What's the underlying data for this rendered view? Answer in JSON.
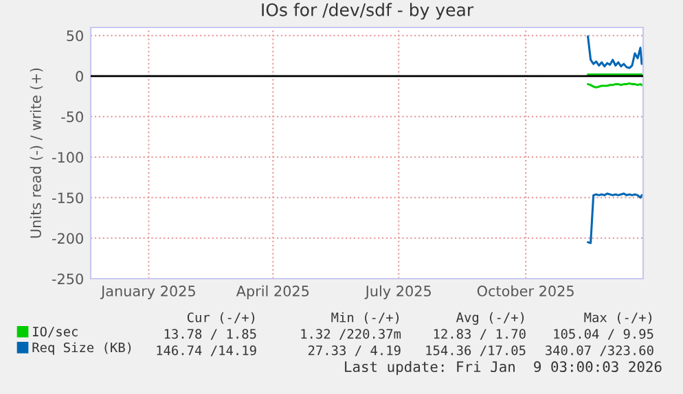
{
  "chart_data": {
    "type": "line",
    "title": "IOs for /dev/sdf - by year",
    "ylabel": "Units read (-) / write (+)",
    "xlim": [
      "2024-12-05",
      "2026-01-09"
    ],
    "xticks": [
      {
        "value": "2025-01-16",
        "label": "January 2025"
      },
      {
        "value": "2025-04-16",
        "label": "April 2025"
      },
      {
        "value": "2025-07-16",
        "label": "July 2025"
      },
      {
        "value": "2025-10-16",
        "label": "October 2025"
      }
    ],
    "ylim": [
      -250,
      60
    ],
    "yticks": [
      -250,
      -200,
      -150,
      -100,
      -50,
      0,
      50
    ],
    "grid": true,
    "legend": "bottom left",
    "ref_lines": [
      {
        "axis": "y",
        "value": 0,
        "color": "#000000"
      }
    ],
    "series": [
      {
        "name": "IO/sec",
        "color": "#00cc00",
        "x": [
          "2025-11-30",
          "2025-12-02",
          "2025-12-04",
          "2025-12-06",
          "2025-12-08",
          "2025-12-10",
          "2025-12-12",
          "2025-12-14",
          "2025-12-16",
          "2025-12-18",
          "2025-12-20",
          "2025-12-22",
          "2025-12-24",
          "2025-12-26",
          "2025-12-28",
          "2025-12-30",
          "2026-01-01",
          "2026-01-03",
          "2026-01-05",
          "2026-01-07",
          "2026-01-08"
        ],
        "values": [
          -10,
          -11,
          -13,
          -14,
          -13,
          -12,
          -12,
          -12,
          -11,
          -11,
          -10,
          -10,
          -11,
          -10,
          -10,
          -9,
          -10,
          -10,
          -11,
          -10,
          -11
        ]
      },
      {
        "color": "#00cc00",
        "x": [
          "2025-11-30",
          "2025-12-02",
          "2025-12-04",
          "2025-12-06",
          "2025-12-08",
          "2025-12-10",
          "2025-12-12",
          "2025-12-14",
          "2025-12-16",
          "2025-12-18",
          "2025-12-20",
          "2025-12-22",
          "2025-12-24",
          "2025-12-26",
          "2025-12-28",
          "2025-12-30",
          "2026-01-01",
          "2026-01-03",
          "2026-01-05",
          "2026-01-07",
          "2026-01-08"
        ],
        "values": [
          2,
          2,
          2,
          2,
          2,
          2,
          2,
          2,
          2,
          2,
          2,
          2,
          2,
          2,
          2,
          2,
          2,
          2,
          2,
          2,
          2
        ]
      },
      {
        "name": "Req Size (KB)",
        "color": "#0066b3",
        "x": [
          "2025-11-30",
          "2025-12-02",
          "2025-12-04",
          "2025-12-06",
          "2025-12-08",
          "2025-12-10",
          "2025-12-12",
          "2025-12-14",
          "2025-12-16",
          "2025-12-18",
          "2025-12-20",
          "2025-12-22",
          "2025-12-24",
          "2025-12-26",
          "2025-12-28",
          "2025-12-30",
          "2026-01-01",
          "2026-01-03",
          "2026-01-05",
          "2026-01-07",
          "2026-01-08"
        ],
        "values": [
          -205,
          -206,
          -147,
          -146,
          -147,
          -146,
          -147,
          -145,
          -146,
          -147,
          -146,
          -147,
          -146,
          -145,
          -147,
          -146,
          -147,
          -146,
          -147,
          -150,
          -147
        ]
      },
      {
        "color": "#0066b3",
        "x": [
          "2025-11-30",
          "2025-12-02",
          "2025-12-04",
          "2025-12-06",
          "2025-12-08",
          "2025-12-10",
          "2025-12-12",
          "2025-12-14",
          "2025-12-16",
          "2025-12-18",
          "2025-12-20",
          "2025-12-22",
          "2025-12-24",
          "2025-12-26",
          "2025-12-28",
          "2025-12-30",
          "2026-01-01",
          "2026-01-03",
          "2026-01-05",
          "2026-01-07",
          "2026-01-08"
        ],
        "values": [
          49,
          20,
          15,
          18,
          13,
          17,
          12,
          16,
          14,
          20,
          13,
          17,
          12,
          15,
          11,
          10,
          13,
          28,
          22,
          35,
          15
        ]
      }
    ],
    "annotations": [
      "Cur (-/+)",
      "Min (-/+)",
      "Avg (-/+)",
      "Max (-/+)",
      "13.78 / 1.85",
      "1.32 /220.37m",
      "12.83 / 1.70",
      "105.04 / 9.95",
      "146.74 /14.19",
      "27.33 / 4.19",
      "154.36 /17.05",
      "340.07 /323.60",
      "Last update: Fri Jan  9 03:00:03 2026"
    ]
  }
}
